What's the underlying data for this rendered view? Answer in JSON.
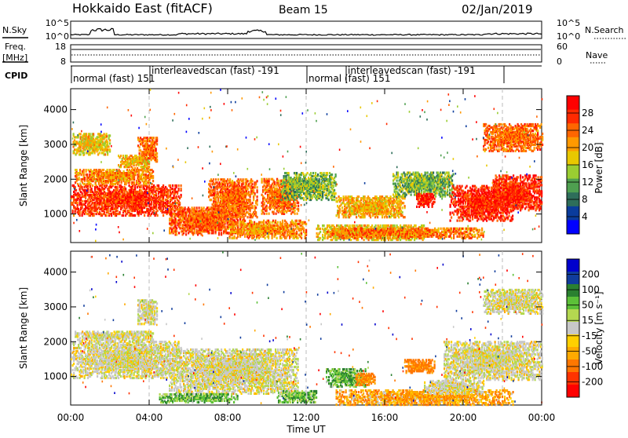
{
  "header": {
    "station": "Hokkaido East (fitACF)",
    "beam": "Beam 15",
    "date": "02/Jan/2019"
  },
  "nsky_panel": {
    "left_label": "N.Sky",
    "right_label": "N.Search",
    "ticks_left": [
      "10^5",
      "10^0"
    ],
    "ticks_right": [
      "10^5",
      "10^0"
    ]
  },
  "freq_panel": {
    "left_label_1": "Freq.",
    "left_label_2": "[MHz]",
    "ticks_left": [
      "18",
      "8"
    ],
    "ticks_right": [
      "60",
      "0"
    ],
    "right_label": "Nave",
    "cpid_label": "CPID"
  },
  "cpid_segments": [
    {
      "label": "normal (fast) 151",
      "start_hour": 0.0,
      "end_hour": 4.0
    },
    {
      "label": "interleavedscan (fast) -191",
      "start_hour": 4.0,
      "end_hour": 12.0
    },
    {
      "label": "normal (fast) 151",
      "start_hour": 12.0,
      "end_hour": 14.0
    },
    {
      "label": "interleavedscan (fast) -191",
      "start_hour": 14.0,
      "end_hour": 22.0
    }
  ],
  "colors": {
    "power_scale": [
      "#0000ff",
      "#0a3c9c",
      "#2e6e5a",
      "#4fa050",
      "#9acd32",
      "#e8c800",
      "#ff9900",
      "#ff6600",
      "#ff2a00",
      "#ff0000"
    ],
    "velocity_scale": [
      "#ff0000",
      "#ff3300",
      "#ff7700",
      "#ffaa00",
      "#ffd000",
      "#c8c8c8",
      "#b4d850",
      "#5cc038",
      "#2a8030",
      "#103c9c",
      "#0000cc"
    ]
  },
  "chart_data": [
    {
      "type": "heatmap",
      "name": "power",
      "xlabel": "",
      "ylabel": "Slant Range [km]",
      "xlim": [
        0,
        24
      ],
      "ylim": [
        180,
        4600
      ],
      "yticks": [
        "4000",
        "3000",
        "2000",
        "1000"
      ],
      "colorbar": {
        "label": "Power [dB]",
        "ticks": [
          "28",
          "24",
          "20",
          "16",
          "12",
          "8",
          "4"
        ],
        "range": [
          0,
          32
        ]
      },
      "blobs": [
        {
          "t0": 0.0,
          "t1": 5.6,
          "r0": 950,
          "r1": 1850,
          "value": 27
        },
        {
          "t0": 0.2,
          "t1": 4.2,
          "r0": 1850,
          "r1": 2300,
          "value": 22
        },
        {
          "t0": 0.1,
          "t1": 2.0,
          "r0": 2700,
          "r1": 3300,
          "value": 18
        },
        {
          "t0": 3.4,
          "t1": 4.4,
          "r0": 2500,
          "r1": 3200,
          "value": 24
        },
        {
          "t0": 2.4,
          "t1": 4.0,
          "r0": 2300,
          "r1": 2700,
          "value": 19
        },
        {
          "t0": 5.0,
          "t1": 8.8,
          "r0": 400,
          "r1": 1200,
          "value": 25
        },
        {
          "t0": 7.0,
          "t1": 9.5,
          "r0": 900,
          "r1": 2000,
          "value": 24
        },
        {
          "t0": 8.0,
          "t1": 12.0,
          "r0": 300,
          "r1": 800,
          "value": 22
        },
        {
          "t0": 9.7,
          "t1": 11.6,
          "r0": 1000,
          "r1": 2000,
          "value": 24
        },
        {
          "t0": 10.7,
          "t1": 13.5,
          "r0": 1400,
          "r1": 2200,
          "value": 13
        },
        {
          "t0": 12.5,
          "t1": 18.0,
          "r0": 250,
          "r1": 700,
          "value": 18
        },
        {
          "t0": 13.5,
          "t1": 17.0,
          "r0": 900,
          "r1": 1500,
          "value": 20
        },
        {
          "t0": 16.4,
          "t1": 19.5,
          "r0": 1500,
          "r1": 2200,
          "value": 13
        },
        {
          "t0": 17.6,
          "t1": 18.5,
          "r0": 1200,
          "r1": 1600,
          "value": 29
        },
        {
          "t0": 19.3,
          "t1": 22.5,
          "r0": 800,
          "r1": 1800,
          "value": 28
        },
        {
          "t0": 21.5,
          "t1": 24.0,
          "r0": 1100,
          "r1": 2100,
          "value": 28
        },
        {
          "t0": 21.0,
          "t1": 24.0,
          "r0": 2800,
          "r1": 3600,
          "value": 24
        },
        {
          "t0": 13.0,
          "t1": 21.0,
          "r0": 300,
          "r1": 600,
          "value": 23
        }
      ]
    },
    {
      "type": "heatmap",
      "name": "velocity",
      "xlabel": "Time UT",
      "ylabel": "Slant Range [km]",
      "xlim": [
        0,
        24
      ],
      "ylim": [
        180,
        4600
      ],
      "xticks": [
        "00:00",
        "04:00",
        "08:00",
        "12:00",
        "16:00",
        "20:00",
        "00:00"
      ],
      "yticks": [
        "4000",
        "3000",
        "2000",
        "1000"
      ],
      "colorbar": {
        "label": "Velocity [m s⁻¹]",
        "ticks": [
          "200",
          "100",
          "50",
          "15",
          "-15",
          "-50",
          "-100",
          "-200"
        ],
        "range": [
          -250,
          250
        ]
      },
      "blobs": [
        {
          "t0": 0.0,
          "t1": 5.6,
          "r0": 950,
          "r1": 2000,
          "value": 0
        },
        {
          "t0": 0.2,
          "t1": 4.2,
          "r0": 2000,
          "r1": 2300,
          "value": 0
        },
        {
          "t0": 3.4,
          "t1": 4.4,
          "r0": 2500,
          "r1": 3200,
          "value": 0
        },
        {
          "t0": 5.0,
          "t1": 11.6,
          "r0": 500,
          "r1": 1800,
          "value": 0
        },
        {
          "t0": 4.5,
          "t1": 8.5,
          "r0": 250,
          "r1": 500,
          "value": 40
        },
        {
          "t0": 10.5,
          "t1": 12.5,
          "r0": 250,
          "r1": 600,
          "value": 40
        },
        {
          "t0": 13.0,
          "t1": 15.0,
          "r0": 700,
          "r1": 1200,
          "value": 40
        },
        {
          "t0": 14.5,
          "t1": 15.5,
          "r0": 750,
          "r1": 1100,
          "value": -60
        },
        {
          "t0": 13.5,
          "t1": 22.5,
          "r0": 180,
          "r1": 600,
          "value": -40
        },
        {
          "t0": 17.0,
          "t1": 18.5,
          "r0": 1100,
          "r1": 1500,
          "value": -70
        },
        {
          "t0": 19.0,
          "t1": 24.0,
          "r0": 900,
          "r1": 2000,
          "value": 0
        },
        {
          "t0": 18.0,
          "t1": 21.0,
          "r0": 500,
          "r1": 900,
          "value": 0
        },
        {
          "t0": 21.0,
          "t1": 24.0,
          "r0": 2800,
          "r1": 3500,
          "value": 0
        }
      ]
    }
  ]
}
